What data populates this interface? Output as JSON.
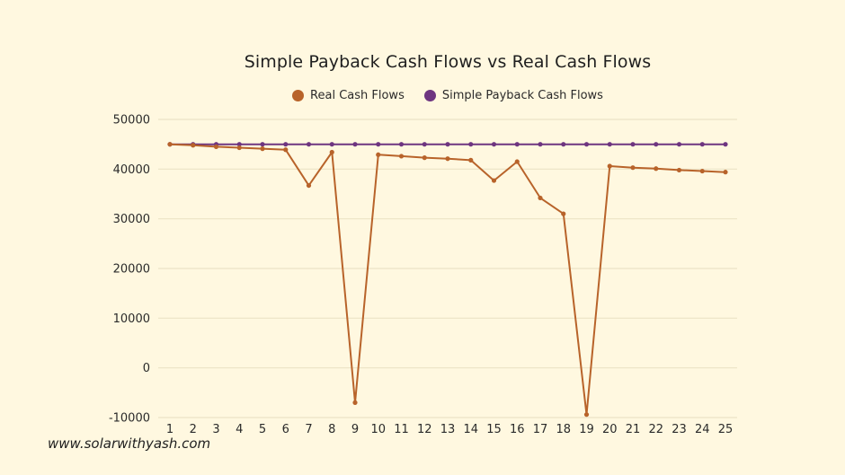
{
  "colors": {
    "background": "#FFF8E0",
    "gridline": "#ECE3C6",
    "real": "#B8632A",
    "simple": "#6E3580"
  },
  "chart": {
    "title": "Simple Payback Cash Flows vs Real Cash Flows",
    "legend": [
      {
        "label": "Real Cash Flows",
        "color": "#B8632A"
      },
      {
        "label": "Simple Payback Cash Flows",
        "color": "#6E3580"
      }
    ],
    "y_ticks": [
      "50000",
      "40000",
      "30000",
      "20000",
      "10000",
      "0",
      "-10000"
    ],
    "x_ticks": [
      "1",
      "2",
      "3",
      "4",
      "5",
      "6",
      "7",
      "8",
      "9",
      "10",
      "11",
      "12",
      "13",
      "14",
      "15",
      "16",
      "17",
      "18",
      "19",
      "20",
      "21",
      "22",
      "23",
      "24",
      "25"
    ]
  },
  "watermark": "www.solarwithyash.com",
  "chart_data": {
    "type": "line",
    "title": "Simple Payback Cash Flows vs Real Cash Flows",
    "xlabel": "",
    "ylabel": "",
    "x": [
      1,
      2,
      3,
      4,
      5,
      6,
      7,
      8,
      9,
      10,
      11,
      12,
      13,
      14,
      15,
      16,
      17,
      18,
      19,
      20,
      21,
      22,
      23,
      24,
      25
    ],
    "series": [
      {
        "name": "Real Cash Flows",
        "color": "#B8632A",
        "values": [
          45000,
          44800,
          44500,
          44300,
          44100,
          43900,
          36700,
          43400,
          -7000,
          42900,
          42600,
          42300,
          42100,
          41800,
          37700,
          41500,
          34200,
          31000,
          -9400,
          40600,
          40300,
          40100,
          39800,
          39600,
          39400
        ]
      },
      {
        "name": "Simple Payback Cash Flows",
        "color": "#6E3580",
        "values": [
          45000,
          45000,
          45000,
          45000,
          45000,
          45000,
          45000,
          45000,
          45000,
          45000,
          45000,
          45000,
          45000,
          45000,
          45000,
          45000,
          45000,
          45000,
          45000,
          45000,
          45000,
          45000,
          45000,
          45000,
          45000
        ]
      }
    ],
    "ylim": [
      -10000,
      50000
    ],
    "yticks": [
      -10000,
      0,
      10000,
      20000,
      30000,
      40000,
      50000
    ],
    "grid": true,
    "legend_position": "top"
  }
}
